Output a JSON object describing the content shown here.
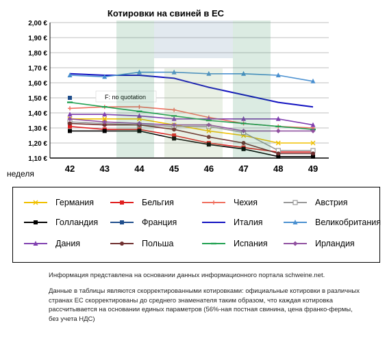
{
  "chart_data": {
    "type": "line",
    "title": "Котировки на свиней в ЕС",
    "xlabel": "неделя",
    "ylabel": "",
    "x": [
      42,
      43,
      44,
      45,
      46,
      47,
      48,
      49
    ],
    "x_tick_labels": [
      "42",
      "43",
      "44",
      "45",
      "46",
      "47",
      "48",
      "49"
    ],
    "ylim": [
      1.1,
      2.0
    ],
    "y_tick_labels": [
      "1,10 €",
      "1,20 €",
      "1,30 €",
      "1,40 €",
      "1,50 €",
      "1,60 €",
      "1,70 €",
      "1,80 €",
      "1,90 €",
      "2,00 €"
    ],
    "grid": "horizontal",
    "annotation": "F: no quotation",
    "legend_position": "bottom",
    "series": [
      {
        "name": "Германия",
        "color": "#f0c000",
        "marker": "x",
        "values": [
          1.36,
          1.36,
          1.36,
          1.32,
          1.28,
          1.25,
          1.2,
          1.2
        ]
      },
      {
        "name": "Бельгия",
        "color": "#e02020",
        "marker": "square",
        "values": [
          1.31,
          1.29,
          1.29,
          1.25,
          1.2,
          1.17,
          1.14,
          1.14
        ]
      },
      {
        "name": "Чехия",
        "color": "#f07060",
        "marker": "plus",
        "values": [
          1.43,
          1.44,
          1.44,
          1.42,
          1.37,
          1.33,
          1.31,
          1.3
        ]
      },
      {
        "name": "Австрия",
        "color": "#999999",
        "marker": "square-open",
        "values": [
          1.34,
          1.33,
          1.32,
          1.31,
          1.31,
          1.27,
          1.15,
          1.15
        ]
      },
      {
        "name": "Голландия",
        "color": "#000000",
        "marker": "square",
        "values": [
          1.28,
          1.28,
          1.28,
          1.23,
          1.19,
          1.16,
          1.11,
          1.11
        ]
      },
      {
        "name": "Франция",
        "color": "#1f4e8c",
        "marker": "square",
        "values": [
          1.5,
          null,
          null,
          null,
          null,
          null,
          null,
          null
        ]
      },
      {
        "name": "Италия",
        "color": "#1010c0",
        "marker": "none",
        "values": [
          1.66,
          1.65,
          1.65,
          1.63,
          1.57,
          1.52,
          1.47,
          1.44
        ]
      },
      {
        "name": "Великобритания",
        "color": "#4a90d0",
        "marker": "triangle",
        "values": [
          1.65,
          1.64,
          1.67,
          1.67,
          1.66,
          1.66,
          1.65,
          1.61
        ]
      },
      {
        "name": "Дания",
        "color": "#8040b0",
        "marker": "triangle",
        "values": [
          1.39,
          1.39,
          1.38,
          1.36,
          1.36,
          1.36,
          1.36,
          1.32
        ]
      },
      {
        "name": "Польша",
        "color": "#703030",
        "marker": "circle",
        "values": [
          1.33,
          1.32,
          1.32,
          1.29,
          1.24,
          1.2,
          1.13,
          1.13
        ]
      },
      {
        "name": "Испания",
        "color": "#20a050",
        "marker": "dash",
        "values": [
          1.47,
          1.44,
          1.41,
          1.38,
          1.35,
          1.33,
          1.31,
          1.29
        ]
      },
      {
        "name": "Ирландия",
        "color": "#9050a0",
        "marker": "diamond",
        "values": [
          1.36,
          1.34,
          1.33,
          1.32,
          1.32,
          1.28,
          1.28,
          1.28
        ]
      }
    ]
  },
  "footer": {
    "source": "Информация представлена на основании данных информационного портала schweine.net.",
    "note": "Данные в таблицы являются скорректированными котировками: официальные котировки в различных странах ЕС скорректированы до среднего знаменателя таким образом, что каждая котировка рассчитывается на основании единых параметров (56%-ная постная свинина, цена франко-фермы, без учета НДС)"
  }
}
